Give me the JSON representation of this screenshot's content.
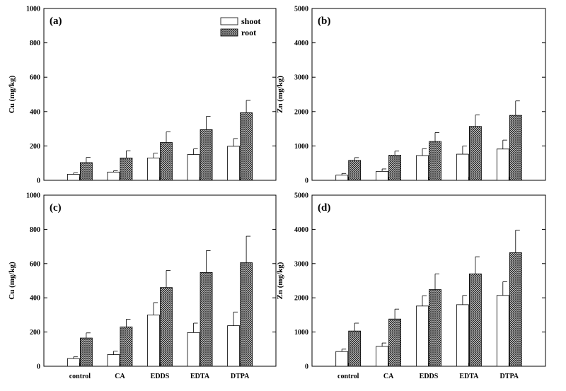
{
  "legend": [
    {
      "name": "shoot",
      "fill": "plain"
    },
    {
      "name": "root",
      "fill": "crosshatch"
    }
  ],
  "chart_data": [
    {
      "type": "bar",
      "panel_label": "(a)",
      "ylabel": "Cu (mg/kg)",
      "ylim": [
        0,
        1000
      ],
      "yticks": [
        "0",
        "200",
        "400",
        "600",
        "800",
        "1000"
      ],
      "categories": [
        "control",
        "CA",
        "EDDS",
        "EDTA",
        "DTPA"
      ],
      "series": [
        {
          "name": "shoot",
          "values": [
            35,
            48,
            130,
            150,
            198
          ],
          "errors": [
            8,
            7,
            28,
            33,
            45
          ]
        },
        {
          "name": "root",
          "values": [
            103,
            130,
            220,
            295,
            393
          ],
          "errors": [
            30,
            42,
            62,
            77,
            72
          ]
        }
      ],
      "legend_position": "top-right"
    },
    {
      "type": "bar",
      "panel_label": "(b)",
      "ylabel": "Zn (mg/kg)",
      "ylim": [
        0,
        5000
      ],
      "yticks": [
        "0",
        "1000",
        "2000",
        "3000",
        "4000",
        "5000"
      ],
      "categories": [
        "control",
        "CA",
        "EDDS",
        "EDTA",
        "DTPA"
      ],
      "series": [
        {
          "name": "shoot",
          "values": [
            150,
            260,
            720,
            760,
            910
          ],
          "errors": [
            50,
            70,
            200,
            240,
            260
          ]
        },
        {
          "name": "root",
          "values": [
            580,
            730,
            1130,
            1570,
            1890
          ],
          "errors": [
            80,
            120,
            260,
            330,
            420
          ]
        }
      ]
    },
    {
      "type": "bar",
      "panel_label": "(c)",
      "ylabel": "Cu (mg/kg)",
      "ylim": [
        0,
        1000
      ],
      "yticks": [
        "0",
        "200",
        "400",
        "600",
        "800",
        "1000"
      ],
      "categories": [
        "control",
        "CA",
        "EDDS",
        "EDTA",
        "DTPA"
      ],
      "series": [
        {
          "name": "shoot",
          "values": [
            45,
            68,
            300,
            197,
            237
          ],
          "errors": [
            10,
            20,
            72,
            55,
            80
          ]
        },
        {
          "name": "root",
          "values": [
            165,
            230,
            460,
            548,
            605
          ],
          "errors": [
            30,
            45,
            100,
            128,
            155
          ]
        }
      ]
    },
    {
      "type": "bar",
      "panel_label": "(d)",
      "ylabel": "Zn (mg/kg)",
      "ylim": [
        0,
        5000
      ],
      "yticks": [
        "0",
        "1000",
        "2000",
        "3000",
        "4000",
        "5000"
      ],
      "categories": [
        "control",
        "CA",
        "EDDS",
        "EDTA",
        "DTPA"
      ],
      "series": [
        {
          "name": "shoot",
          "values": [
            430,
            580,
            1760,
            1800,
            2070
          ],
          "errors": [
            70,
            100,
            300,
            270,
            400
          ]
        },
        {
          "name": "root",
          "values": [
            1030,
            1380,
            2240,
            2700,
            3320
          ],
          "errors": [
            230,
            290,
            460,
            500,
            660
          ]
        }
      ]
    }
  ]
}
